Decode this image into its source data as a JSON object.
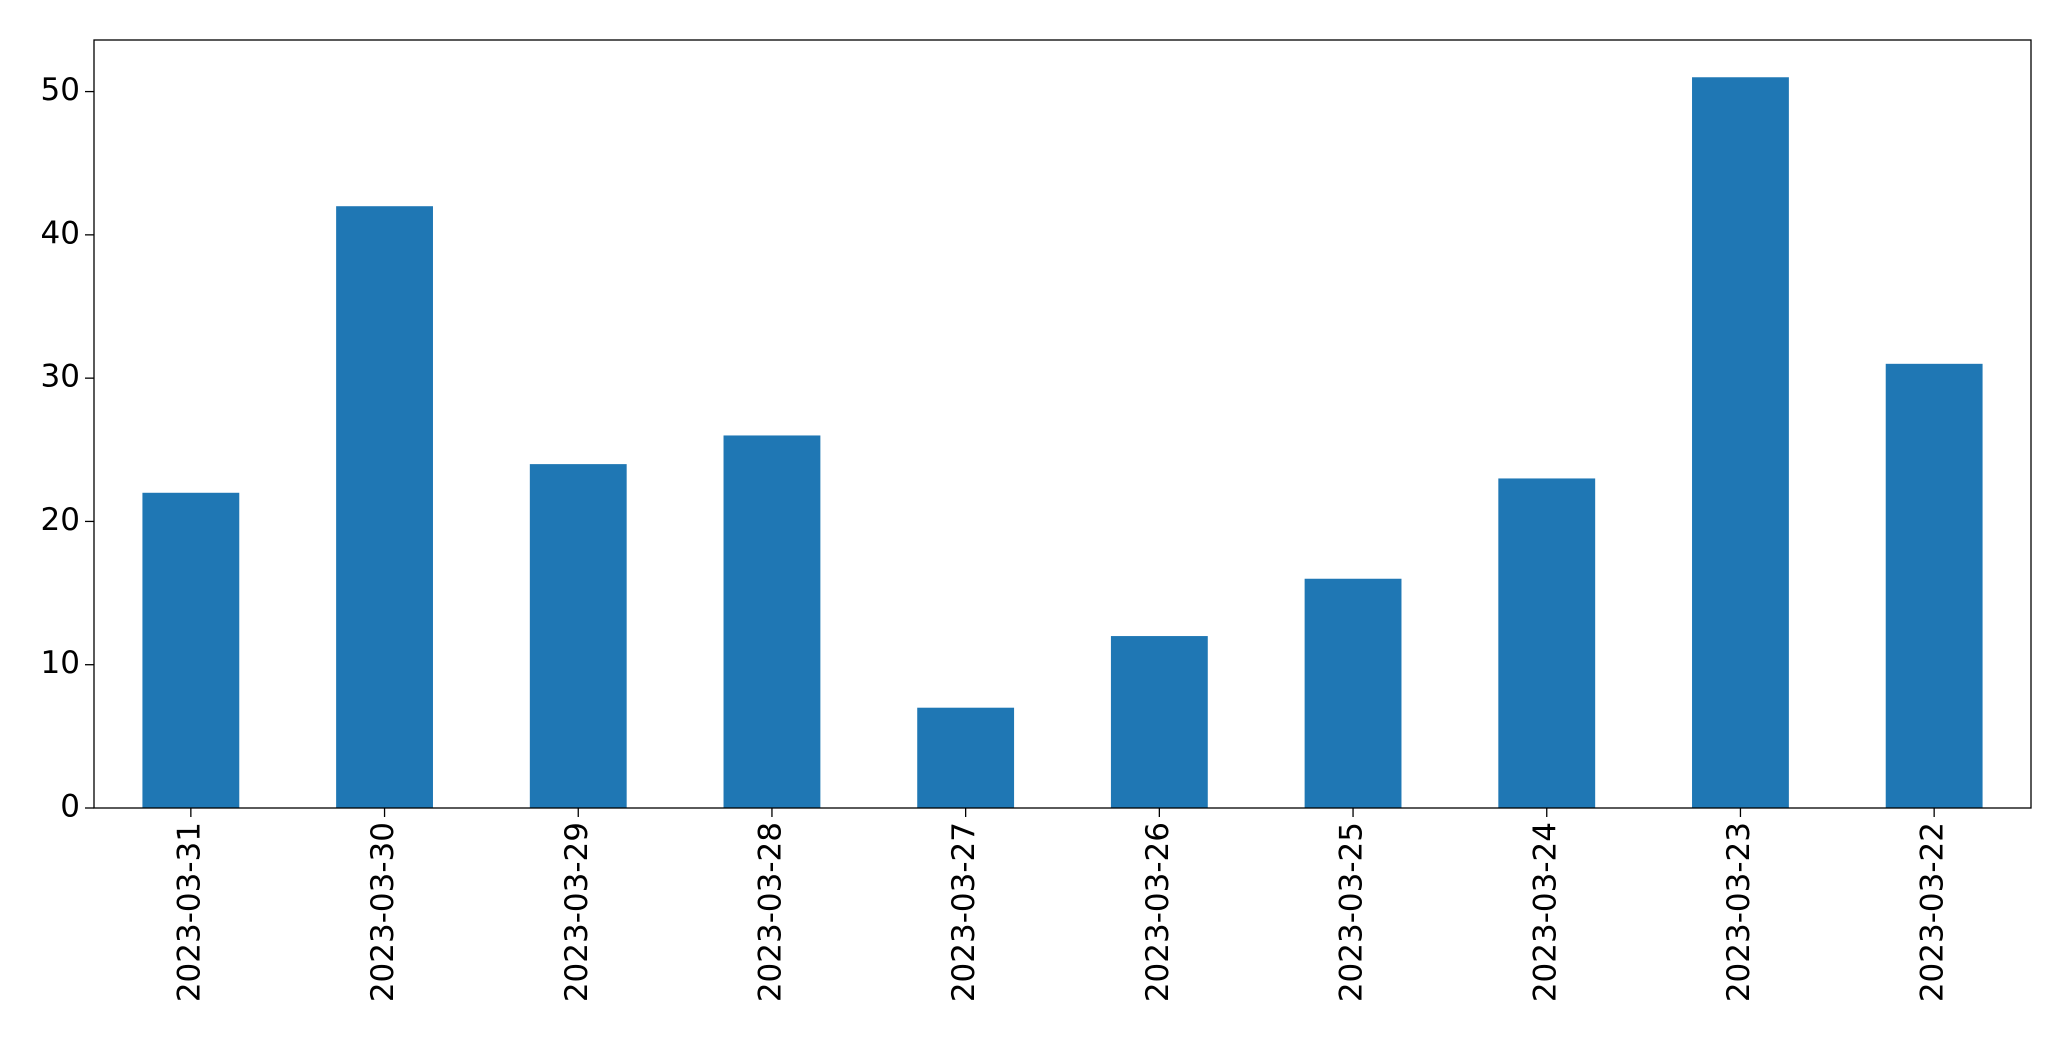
{
  "chart_data": {
    "type": "bar",
    "categories": [
      "2023-03-31",
      "2023-03-30",
      "2023-03-29",
      "2023-03-28",
      "2023-03-27",
      "2023-03-26",
      "2023-03-25",
      "2023-03-24",
      "2023-03-23",
      "2023-03-22"
    ],
    "values": [
      22,
      42,
      24,
      26,
      7,
      12,
      16,
      23,
      51,
      31
    ],
    "color": "#1f77b4",
    "ylim": [
      0,
      53.6
    ],
    "yticks": [
      0,
      10,
      20,
      30,
      40,
      50
    ],
    "grid": false
  }
}
